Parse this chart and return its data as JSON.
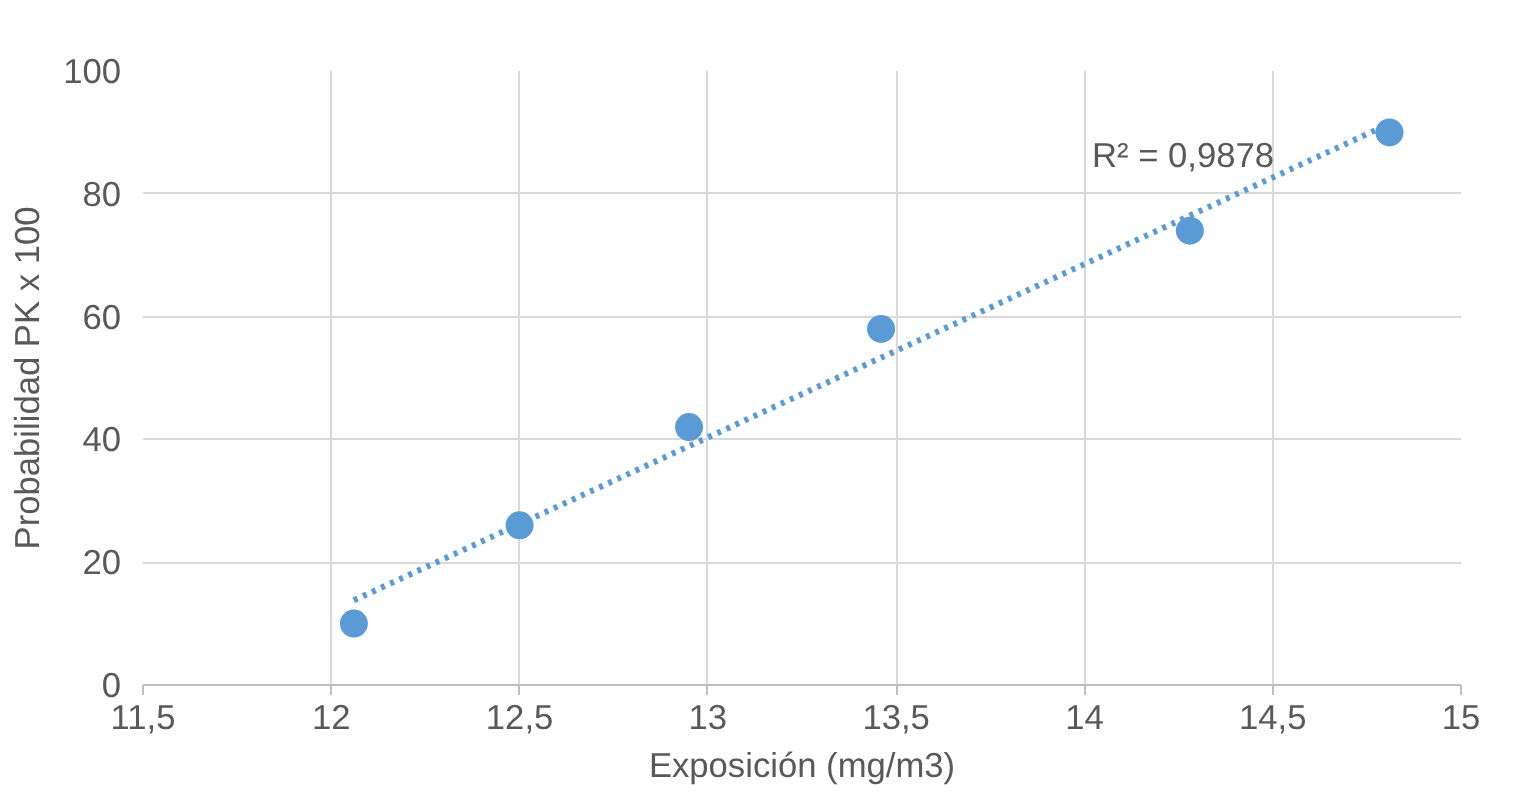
{
  "chart_data": {
    "type": "scatter",
    "xlabel": "Exposición (mg/m3)",
    "ylabel": "Probabilidad PK x 100",
    "xlim": [
      11.5,
      15
    ],
    "ylim": [
      0,
      100
    ],
    "xticks": [
      {
        "value": 11.5,
        "label": "11,5"
      },
      12,
      {
        "value": 12.5,
        "label": "12,5"
      },
      13,
      {
        "value": 13.5,
        "label": "13,5"
      },
      14,
      {
        "value": 14.5,
        "label": "14,5"
      },
      15
    ],
    "yticks": [
      0,
      20,
      40,
      60,
      80,
      100
    ],
    "grid": true,
    "marker": "circle",
    "series": [
      {
        "color": "#5b9bd5",
        "x": [
          12.06,
          12.5,
          12.95,
          13.46,
          14.28,
          14.81
        ],
        "values": [
          10,
          26,
          42,
          58,
          74,
          90
        ]
      },
      {
        "type": "line",
        "color": "#5b9bd5",
        "line_style": "dotted",
        "marker": "none",
        "x": [
          12.06,
          14.81
        ],
        "values": [
          13.8,
          91.4
        ]
      }
    ],
    "annotations": [
      "R² = 0,9878"
    ]
  }
}
